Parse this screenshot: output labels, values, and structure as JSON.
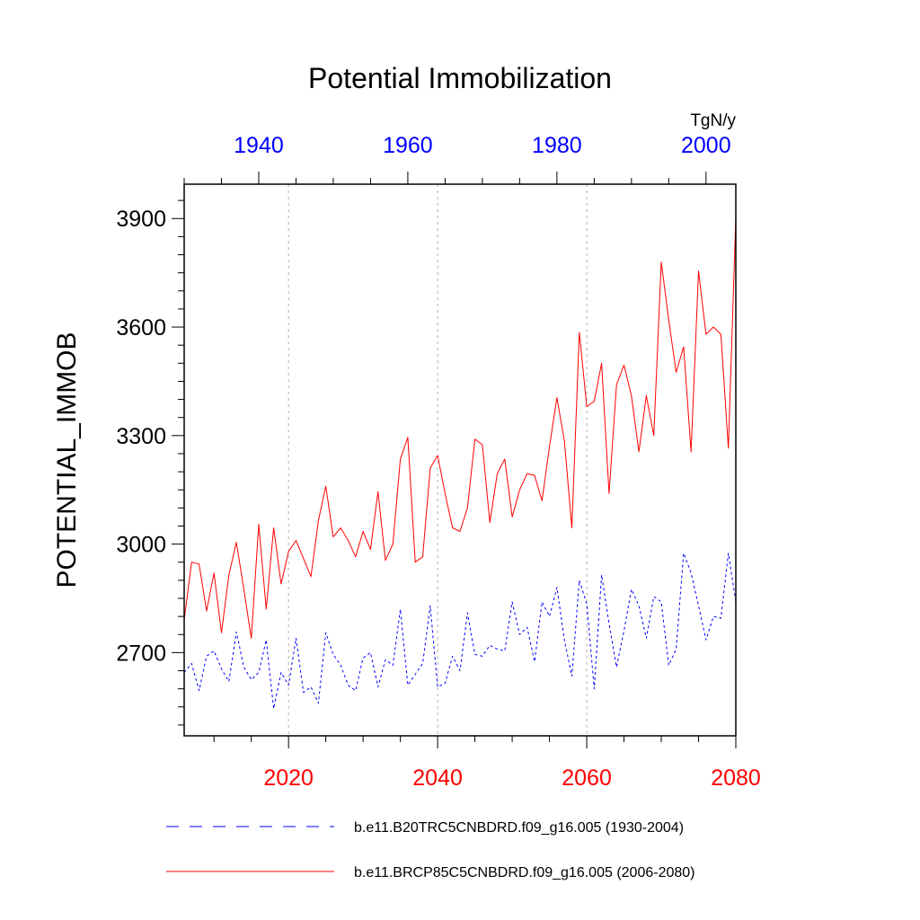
{
  "chart_data": {
    "type": "line",
    "title": "Potential Immobilization",
    "units": "TgN/y",
    "ylabel": "POTENTIAL_IMMOB",
    "ylim": [
      2470,
      3995
    ],
    "yticks": [
      2700,
      3000,
      3300,
      3600,
      3900
    ],
    "ytick_labels": [
      "2700",
      "3000",
      "3300",
      "3600",
      "3900"
    ],
    "ymin_tick": 2500,
    "ymajor_step": 300,
    "yminor_step": 50,
    "x_bottom": {
      "range": [
        2006,
        2080
      ],
      "ticks": [
        2020,
        2040,
        2060,
        2080
      ],
      "tick_labels": [
        "2020",
        "2040",
        "2060",
        "2080"
      ],
      "minor_step": 5,
      "color": "#ff0000"
    },
    "x_top": {
      "range": [
        1930,
        2004
      ],
      "ticks": [
        1940,
        1960,
        1980,
        2000
      ],
      "tick_labels": [
        "1940",
        "1960",
        "1980",
        "2000"
      ],
      "minor_step": 5,
      "color": "#0000ff"
    },
    "grid_x": [
      2020,
      2040,
      2060
    ],
    "series": [
      {
        "name": "b.e11.B20TRC5CNBDRD.f09_g16.005 (1930-2004)",
        "axis": "top",
        "color": "#0000ff",
        "dash": "dashed",
        "x": [
          1930,
          1931,
          1932,
          1933,
          1934,
          1935,
          1936,
          1937,
          1938,
          1939,
          1940,
          1941,
          1942,
          1943,
          1944,
          1945,
          1946,
          1947,
          1948,
          1949,
          1950,
          1951,
          1952,
          1953,
          1954,
          1955,
          1956,
          1957,
          1958,
          1959,
          1960,
          1961,
          1962,
          1963,
          1964,
          1965,
          1966,
          1967,
          1968,
          1969,
          1970,
          1971,
          1972,
          1973,
          1974,
          1975,
          1976,
          1977,
          1978,
          1979,
          1980,
          1981,
          1982,
          1983,
          1984,
          1985,
          1986,
          1987,
          1988,
          1989,
          1990,
          1991,
          1992,
          1993,
          1994,
          1995,
          1996,
          1997,
          1998,
          1999,
          2000,
          2001,
          2002,
          2003,
          2004
        ],
        "y": [
          2645,
          2670,
          2595,
          2690,
          2705,
          2655,
          2620,
          2757,
          2660,
          2625,
          2645,
          2735,
          2545,
          2645,
          2610,
          2740,
          2590,
          2605,
          2560,
          2755,
          2695,
          2665,
          2610,
          2595,
          2685,
          2700,
          2605,
          2680,
          2665,
          2820,
          2610,
          2640,
          2670,
          2830,
          2605,
          2615,
          2690,
          2650,
          2810,
          2695,
          2690,
          2720,
          2710,
          2705,
          2840,
          2750,
          2770,
          2675,
          2840,
          2800,
          2880,
          2735,
          2635,
          2900,
          2835,
          2600,
          2915,
          2780,
          2660,
          2760,
          2875,
          2830,
          2740,
          2855,
          2840,
          2665,
          2710,
          2975,
          2920,
          2830,
          2735,
          2800,
          2795,
          2975,
          2840
        ]
      },
      {
        "name": "b.e11.BRCP85C5CNBDRD.f09_g16.005 (2006-2080)",
        "axis": "bottom",
        "color": "#ff0000",
        "dash": "solid",
        "x": [
          2006,
          2007,
          2008,
          2009,
          2010,
          2011,
          2012,
          2013,
          2014,
          2015,
          2016,
          2017,
          2018,
          2019,
          2020,
          2021,
          2022,
          2023,
          2024,
          2025,
          2026,
          2027,
          2028,
          2029,
          2030,
          2031,
          2032,
          2033,
          2034,
          2035,
          2036,
          2037,
          2038,
          2039,
          2040,
          2041,
          2042,
          2043,
          2044,
          2045,
          2046,
          2047,
          2048,
          2049,
          2050,
          2051,
          2052,
          2053,
          2054,
          2055,
          2056,
          2057,
          2058,
          2059,
          2060,
          2061,
          2062,
          2063,
          2064,
          2065,
          2066,
          2067,
          2068,
          2069,
          2070,
          2071,
          2072,
          2073,
          2074,
          2075,
          2076,
          2077,
          2078,
          2079,
          2080
        ],
        "y": [
          2790,
          2950,
          2945,
          2815,
          2920,
          2755,
          2915,
          3005,
          2875,
          2740,
          3055,
          2820,
          3045,
          2890,
          2980,
          3010,
          2960,
          2910,
          3065,
          3160,
          3020,
          3045,
          3010,
          2965,
          3035,
          2985,
          3145,
          2955,
          3000,
          3235,
          3295,
          2950,
          2965,
          3210,
          3245,
          3140,
          3045,
          3035,
          3100,
          3290,
          3275,
          3060,
          3195,
          3235,
          3075,
          3150,
          3195,
          3190,
          3120,
          3270,
          3405,
          3285,
          3045,
          3585,
          3380,
          3395,
          3500,
          3140,
          3440,
          3495,
          3410,
          3255,
          3410,
          3300,
          3780,
          3620,
          3475,
          3545,
          3255,
          3755,
          3580,
          3600,
          3580,
          3265,
          3905
        ]
      }
    ]
  }
}
